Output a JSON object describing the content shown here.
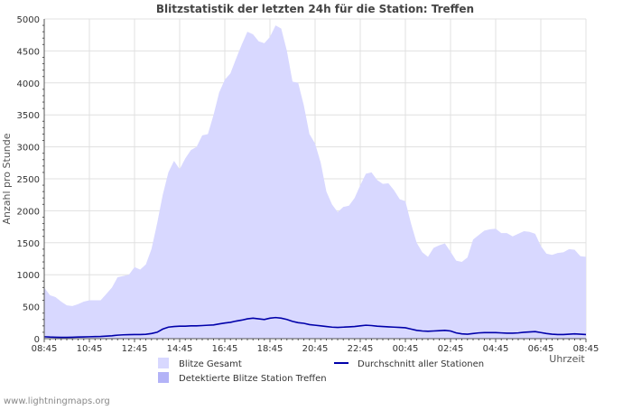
{
  "chart_data": {
    "type": "area",
    "title": "Blitzstatistik der letzten 24h für die Station: Treffen",
    "ylabel": "Anzahl pro Stunde",
    "xlabel": "Uhrzeit",
    "ylim": [
      0,
      5000
    ],
    "yticks": [
      0,
      500,
      1000,
      1500,
      2000,
      2500,
      3000,
      3500,
      4000,
      4500,
      5000
    ],
    "xticks": [
      "08:45",
      "10:45",
      "12:45",
      "14:45",
      "16:45",
      "18:45",
      "20:45",
      "22:45",
      "00:45",
      "02:45",
      "04:45",
      "06:45",
      "08:45"
    ],
    "grid": true,
    "legend_position": "bottom",
    "series": [
      {
        "name": "Blitze Gesamt",
        "kind": "area",
        "color": "#d8d8ff",
        "values": [
          800,
          680,
          650,
          580,
          520,
          510,
          540,
          580,
          600,
          600,
          600,
          700,
          800,
          960,
          980,
          1000,
          1120,
          1080,
          1160,
          1400,
          1800,
          2250,
          2600,
          2780,
          2650,
          2820,
          2950,
          3000,
          3180,
          3200,
          3500,
          3850,
          4050,
          4150,
          4380,
          4600,
          4800,
          4760,
          4650,
          4620,
          4720,
          4900,
          4850,
          4500,
          4020,
          4000,
          3650,
          3200,
          3050,
          2750,
          2300,
          2100,
          1980,
          2060,
          2080,
          2200,
          2400,
          2580,
          2600,
          2480,
          2420,
          2430,
          2320,
          2180,
          2150,
          1800,
          1500,
          1350,
          1280,
          1420,
          1460,
          1490,
          1360,
          1220,
          1200,
          1270,
          1550,
          1620,
          1690,
          1710,
          1720,
          1650,
          1650,
          1600,
          1640,
          1680,
          1670,
          1640,
          1450,
          1330,
          1310,
          1340,
          1350,
          1400,
          1390,
          1290,
          1280
        ]
      },
      {
        "name": "Detektierte Blitze Station Treffen",
        "kind": "area",
        "color": "#b3b3f7",
        "values": []
      },
      {
        "name": "Durchschnitt aller Stationen",
        "kind": "line",
        "color": "#0000aa",
        "values": [
          30,
          25,
          22,
          20,
          20,
          22,
          25,
          28,
          30,
          32,
          35,
          40,
          45,
          55,
          60,
          62,
          65,
          65,
          68,
          80,
          100,
          150,
          180,
          190,
          195,
          195,
          200,
          200,
          205,
          210,
          215,
          230,
          245,
          255,
          275,
          290,
          310,
          320,
          310,
          300,
          320,
          330,
          320,
          300,
          270,
          250,
          240,
          220,
          210,
          200,
          190,
          180,
          175,
          180,
          185,
          190,
          200,
          210,
          205,
          195,
          190,
          185,
          180,
          175,
          170,
          150,
          130,
          120,
          115,
          120,
          125,
          130,
          120,
          90,
          75,
          70,
          80,
          90,
          95,
          95,
          95,
          90,
          85,
          85,
          90,
          100,
          105,
          110,
          95,
          80,
          70,
          65,
          65,
          70,
          75,
          70,
          65
        ]
      }
    ]
  },
  "footer": {
    "credit": "www.lightningmaps.org"
  },
  "colors": {
    "grid": "#e0e0e0",
    "axis": "#555555",
    "line": "#0000aa"
  }
}
